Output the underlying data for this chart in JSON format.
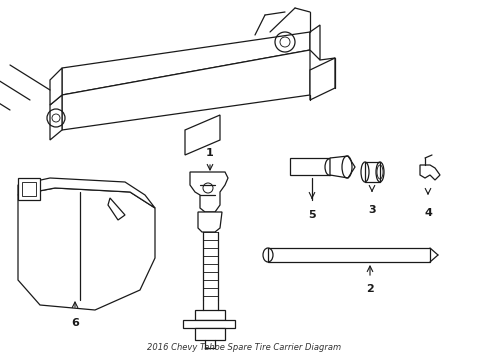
{
  "title": "2016 Chevy Tahoe Spare Tire Carrier Diagram",
  "background_color": "#ffffff",
  "line_color": "#1a1a1a",
  "line_width": 0.9,
  "fig_width": 4.89,
  "fig_height": 3.6,
  "dpi": 100
}
